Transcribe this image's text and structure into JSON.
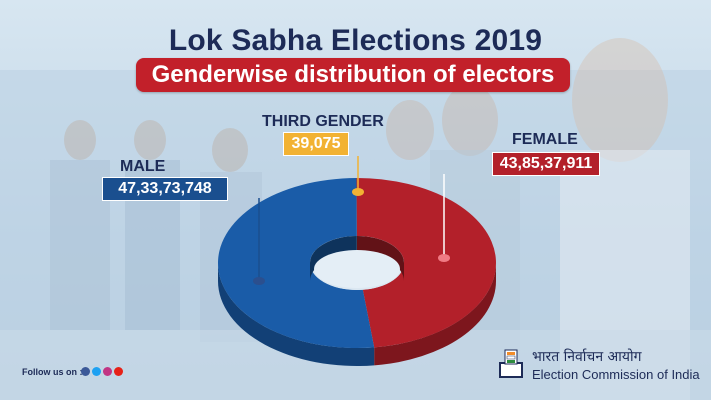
{
  "header": {
    "title": "Lok Sabha Elections 2019",
    "subtitle": "Genderwise distribution of electors"
  },
  "chart_data": {
    "type": "pie",
    "slices": [
      {
        "name": "MALE",
        "value_label": "47,33,73,748",
        "value": 473373748,
        "color": "#1a5ca8"
      },
      {
        "name": "THIRD GENDER",
        "value_label": "39,075",
        "value": 39075,
        "color": "#f2b233"
      },
      {
        "name": "FEMALE",
        "value_label": "43,85,37,911",
        "value": 438537911,
        "color": "#b3202a"
      }
    ]
  },
  "labels": {
    "male_name": "MALE",
    "male_value": "47,33,73,748",
    "third_name": "THIRD GENDER",
    "third_value": "39,075",
    "female_name": "FEMALE",
    "female_value": "43,85,37,911"
  },
  "footer": {
    "follow": "Follow us on :",
    "social_icons": [
      "facebook-icon",
      "twitter-icon",
      "instagram-icon",
      "youtube-icon"
    ],
    "org_hindi": "भारत निर्वाचन आयोग",
    "org_english": "Election Commission of India"
  },
  "colors": {
    "navy": "#1d2b57",
    "red": "#c2202a",
    "blue": "#1a5ca8",
    "yellow": "#f2b233"
  }
}
